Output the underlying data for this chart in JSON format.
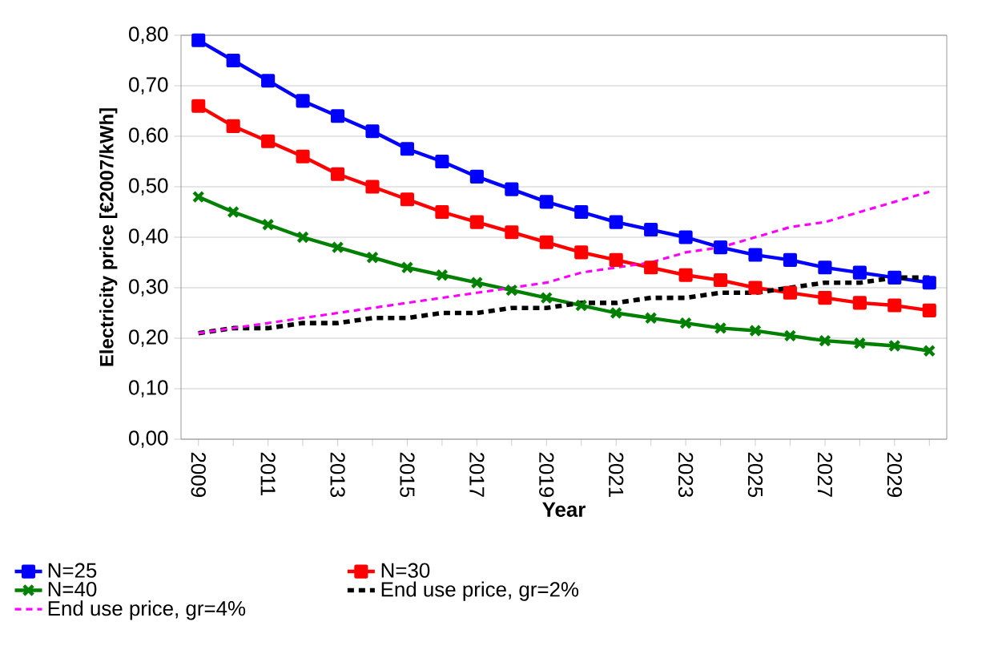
{
  "chart_data": {
    "type": "line",
    "xlabel": "Year",
    "ylabel": "Electricity price [€2007/kWh]",
    "categories": [
      "2009",
      null,
      "2011",
      null,
      "2013",
      null,
      "2015",
      null,
      "2017",
      null,
      "2019",
      null,
      "2021",
      null,
      "2023",
      null,
      "2025",
      null,
      "2027",
      null,
      "2029",
      null
    ],
    "series": [
      {
        "name": "N=25",
        "color": "#0000ff",
        "marker": "square",
        "line_style": "solid",
        "values": [
          0.79,
          0.75,
          0.71,
          0.67,
          0.64,
          0.61,
          0.575,
          0.55,
          0.52,
          0.495,
          0.47,
          0.45,
          0.43,
          0.415,
          0.4,
          0.38,
          0.365,
          0.355,
          0.34,
          0.33,
          0.32,
          0.31
        ]
      },
      {
        "name": "N=30",
        "color": "#ff0000",
        "marker": "square",
        "line_style": "solid",
        "values": [
          0.66,
          0.62,
          0.59,
          0.56,
          0.525,
          0.5,
          0.475,
          0.45,
          0.43,
          0.41,
          0.39,
          0.37,
          0.355,
          0.34,
          0.325,
          0.315,
          0.3,
          0.29,
          0.28,
          0.27,
          0.265,
          0.255
        ]
      },
      {
        "name": "N=40",
        "color": "#008000",
        "marker": "cross",
        "line_style": "solid",
        "values": [
          0.48,
          0.45,
          0.425,
          0.4,
          0.38,
          0.36,
          0.34,
          0.325,
          0.31,
          0.295,
          0.28,
          0.265,
          0.25,
          0.24,
          0.23,
          0.22,
          0.215,
          0.205,
          0.195,
          0.19,
          0.185,
          0.175
        ]
      },
      {
        "name": "End use price, gr=2%",
        "color": "#000000",
        "marker": "none",
        "line_style": "dashed",
        "values": [
          0.21,
          0.22,
          0.22,
          0.23,
          0.23,
          0.24,
          0.24,
          0.25,
          0.25,
          0.26,
          0.26,
          0.27,
          0.27,
          0.28,
          0.28,
          0.29,
          0.29,
          0.3,
          0.31,
          0.31,
          0.32,
          0.32
        ]
      },
      {
        "name": "End use price, gr=4%",
        "color": "#ff00ff",
        "marker": "none",
        "line_style": "dashed",
        "values": [
          0.21,
          0.22,
          0.23,
          0.24,
          0.25,
          0.26,
          0.27,
          0.28,
          0.29,
          0.3,
          0.31,
          0.33,
          0.34,
          0.35,
          0.37,
          0.38,
          0.4,
          0.42,
          0.43,
          0.45,
          0.47,
          0.49
        ]
      }
    ],
    "ylim": [
      0,
      0.8
    ],
    "yticks": [
      {
        "value": 0,
        "label": "0,00"
      },
      {
        "value": 0.1,
        "label": "0,10"
      },
      {
        "value": 0.2,
        "label": "0,20"
      },
      {
        "value": 0.3,
        "label": "0,30"
      },
      {
        "value": 0.4,
        "label": "0,40"
      },
      {
        "value": 0.5,
        "label": "0,50"
      },
      {
        "value": 0.6,
        "label": "0,60"
      },
      {
        "value": 0.7,
        "label": "0,70"
      },
      {
        "value": 0.8,
        "label": "0,80"
      }
    ],
    "grid": "y",
    "legend": "bottom"
  }
}
